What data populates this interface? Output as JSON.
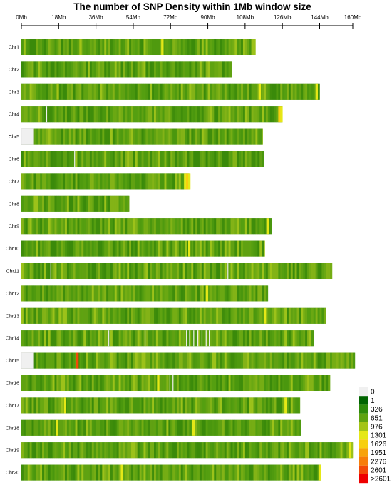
{
  "chart_data": {
    "type": "heatmap",
    "title": "The number of SNP Density within 1Mb window size",
    "x_axis": {
      "unit": "Mb",
      "range": [
        0,
        160
      ],
      "tick_labels": [
        "0Mb",
        "18Mb",
        "36Mb",
        "54Mb",
        "72Mb",
        "90Mb",
        "108Mb",
        "126Mb",
        "144Mb",
        "160Mb"
      ],
      "tick_values": [
        0,
        18,
        36,
        54,
        72,
        90,
        108,
        126,
        144,
        160
      ]
    },
    "chromosomes": [
      {
        "name": "Chr1",
        "start_mb": 0.0,
        "end_mb": 113.0,
        "hotspots": [
          {
            "mb": 28.0,
            "level": "976"
          },
          {
            "mb": 67.5,
            "level": "1301"
          }
        ]
      },
      {
        "name": "Chr2",
        "start_mb": 0.0,
        "end_mb": 101.5,
        "hotspots": []
      },
      {
        "name": "Chr3",
        "start_mb": 0.0,
        "end_mb": 144.0,
        "hotspots": [
          {
            "mb": 17.0,
            "level": "976"
          },
          {
            "mb": 114.5,
            "level": "1301"
          },
          {
            "mb": 142.0,
            "level": "1301"
          }
        ]
      },
      {
        "name": "Chr4",
        "start_mb": 0.0,
        "end_mb": 126.0,
        "hotspots": [
          {
            "mb": 12.0,
            "level": "0"
          },
          {
            "mb": 124.0,
            "level": "1626"
          },
          {
            "mb": 125.0,
            "level": "1301"
          }
        ]
      },
      {
        "name": "Chr5",
        "start_mb": 0.0,
        "end_mb": 116.5,
        "missing_mb": [
          0.0,
          6.0
        ],
        "hotspots": []
      },
      {
        "name": "Chr6",
        "start_mb": 0.0,
        "end_mb": 117.0,
        "hotspots": [
          {
            "mb": 25.5,
            "level": "0"
          }
        ]
      },
      {
        "name": "Chr7",
        "start_mb": 0.0,
        "end_mb": 81.0,
        "hotspots": [
          {
            "mb": 78.5,
            "level": "1301"
          },
          {
            "mb": 79.5,
            "level": "1626"
          },
          {
            "mb": 80.5,
            "level": "1301"
          }
        ]
      },
      {
        "name": "Chr8",
        "start_mb": 0.0,
        "end_mb": 52.0,
        "hotspots": []
      },
      {
        "name": "Chr9",
        "start_mb": 0.0,
        "end_mb": 121.0,
        "hotspots": [
          {
            "mb": 118.5,
            "level": "1301"
          }
        ]
      },
      {
        "name": "Chr10",
        "start_mb": 0.0,
        "end_mb": 117.5,
        "hotspots": [
          {
            "mb": 80.5,
            "level": "1301"
          }
        ]
      },
      {
        "name": "Chr11",
        "start_mb": 0.0,
        "end_mb": 150.0,
        "hotspots": [
          {
            "mb": 14.0,
            "level": "0"
          },
          {
            "mb": 99.5,
            "level": "0"
          }
        ]
      },
      {
        "name": "Chr12",
        "start_mb": 0.0,
        "end_mb": 119.0,
        "hotspots": [
          {
            "mb": 89.0,
            "level": "1301"
          }
        ]
      },
      {
        "name": "Chr13",
        "start_mb": 0.0,
        "end_mb": 147.0,
        "hotspots": [
          {
            "mb": 117.0,
            "level": "1301"
          }
        ]
      },
      {
        "name": "Chr14",
        "start_mb": 0.0,
        "end_mb": 141.0,
        "hotspots": [
          {
            "mb": 42.0,
            "level": "0"
          },
          {
            "mb": 59.5,
            "level": "0"
          },
          {
            "mb": 79.5,
            "level": "0"
          },
          {
            "mb": 81.0,
            "level": "0"
          },
          {
            "mb": 83.0,
            "level": "0"
          },
          {
            "mb": 85.0,
            "level": "0"
          },
          {
            "mb": 87.0,
            "level": "0"
          },
          {
            "mb": 89.0,
            "level": "0"
          },
          {
            "mb": 90.5,
            "level": "0"
          }
        ]
      },
      {
        "name": "Chr15",
        "start_mb": 0.0,
        "end_mb": 161.0,
        "missing_mb": [
          0.0,
          6.0
        ],
        "hotspots": [
          {
            "mb": 26.5,
            "level": "2601"
          }
        ]
      },
      {
        "name": "Chr16",
        "start_mb": 0.0,
        "end_mb": 149.0,
        "hotspots": [
          {
            "mb": 65.5,
            "level": "1301"
          },
          {
            "mb": 71.5,
            "level": "0"
          },
          {
            "mb": 73.0,
            "level": "0"
          }
        ]
      },
      {
        "name": "Chr17",
        "start_mb": 0.0,
        "end_mb": 134.5,
        "hotspots": [
          {
            "mb": 20.5,
            "level": "1301"
          },
          {
            "mb": 127.0,
            "level": "1301"
          }
        ]
      },
      {
        "name": "Chr18",
        "start_mb": 0.0,
        "end_mb": 135.0,
        "hotspots": [
          {
            "mb": 16.5,
            "level": "1301"
          },
          {
            "mb": 82.5,
            "level": "1301"
          }
        ]
      },
      {
        "name": "Chr19",
        "start_mb": 0.0,
        "end_mb": 160.0,
        "hotspots": [
          {
            "mb": 158.0,
            "level": "1301"
          }
        ]
      },
      {
        "name": "Chr20",
        "start_mb": 0.0,
        "end_mb": 144.5,
        "hotspots": [
          {
            "mb": 48.0,
            "level": "1301"
          },
          {
            "mb": 143.5,
            "level": "1301"
          }
        ]
      }
    ],
    "legend": {
      "placement": "bottom-right",
      "items": [
        {
          "label": "0",
          "color": "#f0f0f0"
        },
        {
          "label": "1",
          "color": "#006400"
        },
        {
          "label": "326",
          "color": "#2e8b0a"
        },
        {
          "label": "651",
          "color": "#5fa310"
        },
        {
          "label": "976",
          "color": "#a3c417"
        },
        {
          "label": "1301",
          "color": "#e5e817"
        },
        {
          "label": "1626",
          "color": "#f7cf10"
        },
        {
          "label": "1951",
          "color": "#f7a30c"
        },
        {
          "label": "2276",
          "color": "#f77e0a"
        },
        {
          "label": "2601",
          "color": "#f24a08"
        },
        {
          "label": ">2601",
          "color": "#ee0000"
        }
      ]
    },
    "base_palette": [
      "#3f8d0b",
      "#4a970e",
      "#559f10",
      "#5fa311",
      "#6aa813",
      "#75ad14",
      "#4f9a0f",
      "#3a8a0a",
      "#60a112",
      "#83b317"
    ],
    "grid": false
  }
}
